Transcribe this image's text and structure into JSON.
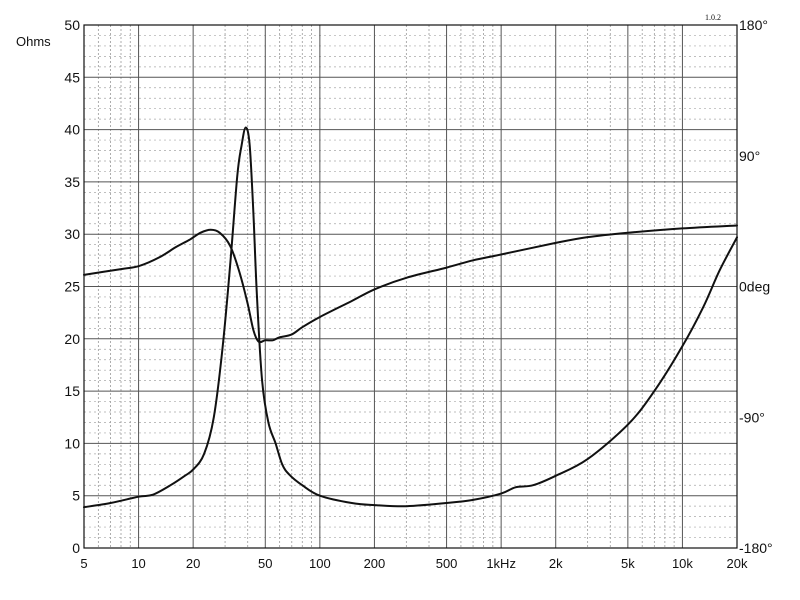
{
  "chart_data": {
    "type": "line",
    "title": "",
    "ylabel": "Ohms",
    "version_label": "1.0.2",
    "x_scale": "log",
    "xlim": [
      5,
      20000
    ],
    "ylim": [
      0,
      50
    ],
    "y2lim": [
      -180,
      180
    ],
    "grid": true,
    "x_ticks": [
      {
        "value": 5,
        "label": "5"
      },
      {
        "value": 10,
        "label": "10"
      },
      {
        "value": 20,
        "label": "20"
      },
      {
        "value": 50,
        "label": "50"
      },
      {
        "value": 100,
        "label": "100"
      },
      {
        "value": 200,
        "label": "200"
      },
      {
        "value": 500,
        "label": "500"
      },
      {
        "value": 1000,
        "label": "1kHz"
      },
      {
        "value": 2000,
        "label": "2k"
      },
      {
        "value": 5000,
        "label": "5k"
      },
      {
        "value": 10000,
        "label": "10k"
      },
      {
        "value": 20000,
        "label": "20k"
      }
    ],
    "y_ticks": [
      {
        "value": 0,
        "label": "0"
      },
      {
        "value": 5,
        "label": "5"
      },
      {
        "value": 10,
        "label": "10"
      },
      {
        "value": 15,
        "label": "15"
      },
      {
        "value": 20,
        "label": "20"
      },
      {
        "value": 25,
        "label": "25"
      },
      {
        "value": 30,
        "label": "30"
      },
      {
        "value": 35,
        "label": "35"
      },
      {
        "value": 40,
        "label": "40"
      },
      {
        "value": 45,
        "label": "45"
      },
      {
        "value": 50,
        "label": "50"
      }
    ],
    "y2_ticks": [
      {
        "value": 180,
        "label": "180°"
      },
      {
        "value": 90,
        "label": "90°"
      },
      {
        "value": 0,
        "label": "0deg"
      },
      {
        "value": -90,
        "label": "-90°"
      },
      {
        "value": -180,
        "label": "-180°"
      }
    ],
    "series": [
      {
        "axis": "impedance",
        "color": "#111111",
        "points": [
          [
            5,
            3.9
          ],
          [
            7,
            4.3
          ],
          [
            10,
            4.9
          ],
          [
            12,
            5.1
          ],
          [
            15,
            6.0
          ],
          [
            18,
            6.9
          ],
          [
            20,
            7.5
          ],
          [
            23,
            9.0
          ],
          [
            26,
            12.5
          ],
          [
            29,
            19
          ],
          [
            32,
            27
          ],
          [
            35,
            35.5
          ],
          [
            37,
            38.5
          ],
          [
            39,
            40.2
          ],
          [
            41,
            38.5
          ],
          [
            43,
            32
          ],
          [
            45,
            24
          ],
          [
            48,
            16
          ],
          [
            52,
            12
          ],
          [
            57,
            10
          ],
          [
            62,
            8
          ],
          [
            68,
            7
          ],
          [
            80,
            6
          ],
          [
            100,
            5
          ],
          [
            150,
            4.3
          ],
          [
            200,
            4.1
          ],
          [
            300,
            4.0
          ],
          [
            500,
            4.3
          ],
          [
            700,
            4.6
          ],
          [
            1000,
            5.2
          ],
          [
            1200,
            5.8
          ],
          [
            1500,
            6.0
          ],
          [
            2000,
            6.9
          ],
          [
            3000,
            8.5
          ],
          [
            5000,
            11.8
          ],
          [
            7000,
            15.0
          ],
          [
            10000,
            19.3
          ],
          [
            13000,
            23.0
          ],
          [
            16000,
            26.5
          ],
          [
            20000,
            29.7
          ]
        ]
      },
      {
        "axis": "phase",
        "color": "#111111",
        "points": [
          [
            5,
            8
          ],
          [
            8,
            12
          ],
          [
            10,
            14
          ],
          [
            13,
            20
          ],
          [
            16,
            27
          ],
          [
            19,
            32
          ],
          [
            22,
            37
          ],
          [
            25,
            39
          ],
          [
            28,
            37
          ],
          [
            32,
            28
          ],
          [
            36,
            10
          ],
          [
            40,
            -12
          ],
          [
            43,
            -30
          ],
          [
            46,
            -38
          ],
          [
            50,
            -37
          ],
          [
            55,
            -37
          ],
          [
            60,
            -35
          ],
          [
            70,
            -33
          ],
          [
            80,
            -28
          ],
          [
            100,
            -21
          ],
          [
            150,
            -10
          ],
          [
            200,
            -2
          ],
          [
            300,
            6
          ],
          [
            500,
            13
          ],
          [
            700,
            18
          ],
          [
            1000,
            22
          ],
          [
            2000,
            30
          ],
          [
            3000,
            34
          ],
          [
            5000,
            37
          ],
          [
            10000,
            40
          ],
          [
            20000,
            42
          ]
        ]
      }
    ]
  }
}
